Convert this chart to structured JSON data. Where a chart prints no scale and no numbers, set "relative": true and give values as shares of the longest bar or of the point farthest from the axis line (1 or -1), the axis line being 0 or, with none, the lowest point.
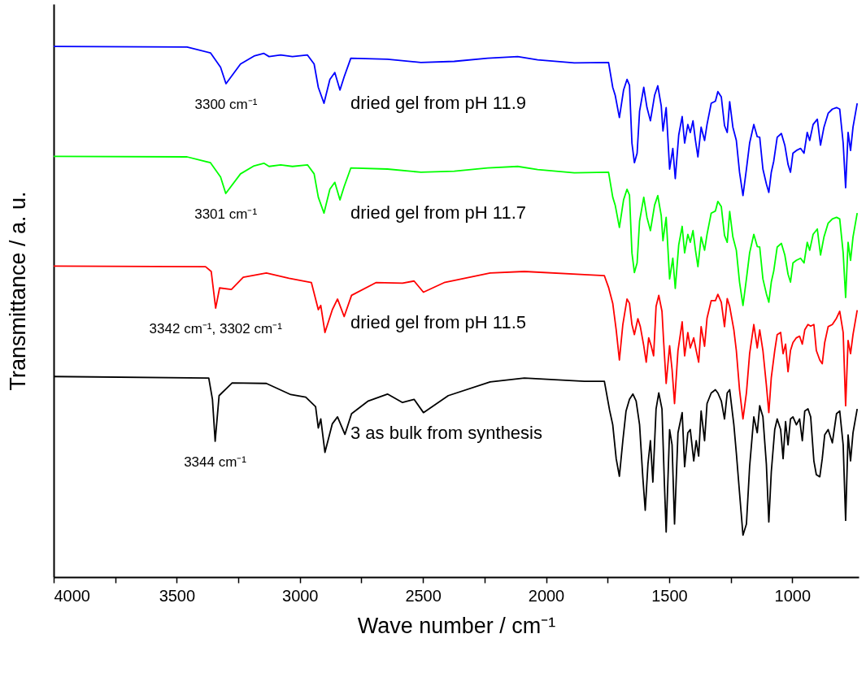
{
  "chart_data": {
    "type": "line",
    "relative": true,
    "xlabel": "Wave number / cm⁻¹",
    "ylabel": "Transmittance / a. u.",
    "xlim": [
      4000,
      730
    ],
    "xticks": [
      4000,
      {
        "value": 3750,
        "label": null
      },
      3500,
      {
        "value": 3250,
        "label": null
      },
      3000,
      {
        "value": 2750,
        "label": null
      },
      2500,
      {
        "value": 2250,
        "label": null
      },
      2000,
      {
        "value": 1750,
        "label": null
      },
      1500,
      {
        "value": 1250,
        "label": null
      },
      1000
    ],
    "grid": false,
    "legend": false,
    "annotations": [
      {
        "text": "3300 cm⁻¹",
        "x": 3300,
        "y": 0.93
      },
      {
        "text": "3301 cm⁻¹",
        "x": 3301,
        "y": 0.723
      },
      {
        "text": "3342 cm⁻¹, 3302 cm⁻¹",
        "x": 3342,
        "y": 0.507
      },
      {
        "text": "3344 cm⁻¹",
        "x": 3344,
        "y": 0.256
      }
    ],
    "series": [
      {
        "name": "dried gel from pH 11.9",
        "color": "#0000ff",
        "x": [
          4000,
          3458,
          3363,
          3322,
          3300,
          3241,
          3186,
          3146,
          3125,
          3078,
          3030,
          2969,
          2942,
          2925,
          2902,
          2878,
          2858,
          2837,
          2820,
          2793,
          2644,
          2508,
          2373,
          2237,
          2115,
          2034,
          1885,
          1746,
          1729,
          1719,
          1702,
          1685,
          1671,
          1661,
          1651,
          1641,
          1630,
          1620,
          1603,
          1590,
          1576,
          1559,
          1546,
          1532,
          1525,
          1512,
          1498,
          1485,
          1475,
          1461,
          1447,
          1437,
          1424,
          1414,
          1403,
          1393,
          1383,
          1370,
          1356,
          1346,
          1329,
          1312,
          1302,
          1288,
          1275,
          1264,
          1254,
          1241,
          1227,
          1214,
          1200,
          1186,
          1173,
          1156,
          1142,
          1132,
          1119,
          1105,
          1095,
          1085,
          1075,
          1061,
          1044,
          1030,
          1017,
          1007,
          997,
          983,
          966,
          952,
          939,
          929,
          915,
          898,
          885,
          871,
          854,
          837,
          820,
          807,
          793,
          783,
          773,
          763,
          753,
          736
        ],
        "values": [
          1.0,
          0.999,
          0.988,
          0.961,
          0.93,
          0.967,
          0.982,
          0.987,
          0.981,
          0.984,
          0.981,
          0.984,
          0.967,
          0.923,
          0.893,
          0.938,
          0.951,
          0.918,
          0.943,
          0.978,
          0.976,
          0.97,
          0.972,
          0.978,
          0.981,
          0.975,
          0.969,
          0.97,
          0.923,
          0.908,
          0.866,
          0.918,
          0.938,
          0.927,
          0.818,
          0.781,
          0.799,
          0.878,
          0.923,
          0.885,
          0.86,
          0.908,
          0.926,
          0.888,
          0.841,
          0.885,
          0.769,
          0.808,
          0.751,
          0.833,
          0.868,
          0.818,
          0.853,
          0.838,
          0.86,
          0.823,
          0.792,
          0.848,
          0.823,
          0.853,
          0.893,
          0.897,
          0.915,
          0.905,
          0.851,
          0.838,
          0.896,
          0.848,
          0.823,
          0.763,
          0.719,
          0.769,
          0.818,
          0.853,
          0.83,
          0.829,
          0.769,
          0.741,
          0.725,
          0.763,
          0.784,
          0.829,
          0.836,
          0.814,
          0.778,
          0.763,
          0.799,
          0.804,
          0.808,
          0.799,
          0.838,
          0.823,
          0.853,
          0.863,
          0.814,
          0.848,
          0.874,
          0.882,
          0.885,
          0.882,
          0.818,
          0.734,
          0.838,
          0.804,
          0.848,
          0.893
        ]
      },
      {
        "name": "dried gel from pH 11.7",
        "color": "#00ff00",
        "x": [
          4000,
          3458,
          3363,
          3322,
          3301,
          3241,
          3186,
          3146,
          3125,
          3078,
          3030,
          2969,
          2942,
          2925,
          2902,
          2878,
          2858,
          2837,
          2820,
          2793,
          2644,
          2508,
          2373,
          2237,
          2115,
          2034,
          1885,
          1746,
          1729,
          1719,
          1702,
          1685,
          1671,
          1661,
          1651,
          1641,
          1630,
          1620,
          1603,
          1590,
          1576,
          1559,
          1546,
          1532,
          1525,
          1512,
          1498,
          1485,
          1475,
          1461,
          1447,
          1437,
          1424,
          1414,
          1403,
          1393,
          1383,
          1370,
          1356,
          1346,
          1329,
          1312,
          1302,
          1288,
          1275,
          1264,
          1254,
          1241,
          1227,
          1214,
          1200,
          1186,
          1173,
          1156,
          1142,
          1132,
          1119,
          1105,
          1095,
          1085,
          1075,
          1061,
          1044,
          1030,
          1017,
          1007,
          997,
          983,
          966,
          952,
          939,
          929,
          915,
          898,
          885,
          871,
          854,
          837,
          820,
          807,
          793,
          783,
          773,
          763,
          753,
          736
        ],
        "values": [
          0.793,
          0.792,
          0.781,
          0.754,
          0.723,
          0.76,
          0.775,
          0.78,
          0.774,
          0.777,
          0.774,
          0.777,
          0.76,
          0.716,
          0.686,
          0.731,
          0.744,
          0.711,
          0.736,
          0.771,
          0.769,
          0.763,
          0.765,
          0.771,
          0.774,
          0.768,
          0.762,
          0.763,
          0.716,
          0.701,
          0.659,
          0.711,
          0.731,
          0.72,
          0.611,
          0.574,
          0.592,
          0.671,
          0.716,
          0.678,
          0.653,
          0.701,
          0.719,
          0.681,
          0.634,
          0.678,
          0.562,
          0.601,
          0.544,
          0.626,
          0.661,
          0.611,
          0.646,
          0.631,
          0.653,
          0.616,
          0.585,
          0.641,
          0.616,
          0.646,
          0.686,
          0.69,
          0.708,
          0.698,
          0.644,
          0.631,
          0.689,
          0.641,
          0.616,
          0.556,
          0.512,
          0.562,
          0.611,
          0.646,
          0.623,
          0.622,
          0.562,
          0.534,
          0.518,
          0.556,
          0.577,
          0.622,
          0.629,
          0.607,
          0.571,
          0.556,
          0.592,
          0.597,
          0.601,
          0.592,
          0.631,
          0.616,
          0.646,
          0.656,
          0.607,
          0.641,
          0.667,
          0.675,
          0.678,
          0.675,
          0.611,
          0.527,
          0.631,
          0.597,
          0.641,
          0.686
        ]
      },
      {
        "name": "dried gel from pH 11.5",
        "color": "#ff0000",
        "x": [
          4000,
          3383,
          3360,
          3342,
          3326,
          3278,
          3230,
          3136,
          3044,
          2953,
          2925,
          2915,
          2898,
          2868,
          2847,
          2820,
          2790,
          2691,
          2583,
          2536,
          2498,
          2414,
          2227,
          2088,
          1844,
          1763,
          1746,
          1729,
          1715,
          1702,
          1688,
          1671,
          1661,
          1651,
          1641,
          1627,
          1617,
          1603,
          1593,
          1583,
          1573,
          1563,
          1553,
          1542,
          1529,
          1522,
          1512,
          1498,
          1488,
          1478,
          1464,
          1447,
          1437,
          1424,
          1414,
          1400,
          1390,
          1380,
          1370,
          1356,
          1346,
          1329,
          1312,
          1302,
          1288,
          1275,
          1264,
          1254,
          1237,
          1227,
          1214,
          1200,
          1186,
          1173,
          1156,
          1142,
          1132,
          1119,
          1105,
          1095,
          1085,
          1071,
          1061,
          1047,
          1037,
          1027,
          1017,
          1007,
          997,
          983,
          970,
          959,
          949,
          936,
          925,
          912,
          902,
          888,
          878,
          868,
          854,
          837,
          820,
          807,
          793,
          783,
          773,
          763,
          753,
          736
        ],
        "values": [
          0.586,
          0.585,
          0.576,
          0.507,
          0.545,
          0.542,
          0.565,
          0.573,
          0.563,
          0.555,
          0.504,
          0.512,
          0.461,
          0.504,
          0.524,
          0.491,
          0.531,
          0.555,
          0.554,
          0.558,
          0.537,
          0.555,
          0.573,
          0.576,
          0.57,
          0.568,
          0.546,
          0.516,
          0.466,
          0.409,
          0.476,
          0.524,
          0.516,
          0.476,
          0.457,
          0.487,
          0.472,
          0.436,
          0.405,
          0.451,
          0.436,
          0.417,
          0.51,
          0.531,
          0.501,
          0.442,
          0.365,
          0.436,
          0.391,
          0.327,
          0.427,
          0.481,
          0.417,
          0.461,
          0.432,
          0.451,
          0.427,
          0.405,
          0.472,
          0.435,
          0.488,
          0.521,
          0.521,
          0.533,
          0.518,
          0.472,
          0.525,
          0.51,
          0.466,
          0.427,
          0.353,
          0.298,
          0.347,
          0.421,
          0.476,
          0.432,
          0.466,
          0.427,
          0.362,
          0.31,
          0.376,
          0.427,
          0.457,
          0.461,
          0.421,
          0.439,
          0.387,
          0.427,
          0.442,
          0.451,
          0.454,
          0.439,
          0.466,
          0.476,
          0.473,
          0.476,
          0.427,
          0.409,
          0.402,
          0.442,
          0.472,
          0.476,
          0.488,
          0.501,
          0.461,
          0.323,
          0.446,
          0.421,
          0.457,
          0.503
        ]
      },
      {
        "name": "3 as bulk from synthesis",
        "color": "#000000",
        "x": [
          4000,
          3370,
          3355,
          3344,
          3328,
          3275,
          3136,
          3037,
          2976,
          2936,
          2925,
          2915,
          2898,
          2868,
          2847,
          2817,
          2790,
          2722,
          2644,
          2583,
          2536,
          2498,
          2397,
          2227,
          2088,
          1844,
          1763,
          1742,
          1729,
          1715,
          1702,
          1688,
          1675,
          1661,
          1647,
          1634,
          1620,
          1607,
          1597,
          1586,
          1576,
          1566,
          1553,
          1542,
          1529,
          1519,
          1512,
          1498,
          1488,
          1478,
          1464,
          1447,
          1437,
          1424,
          1414,
          1400,
          1390,
          1380,
          1370,
          1356,
          1346,
          1329,
          1312,
          1302,
          1288,
          1275,
          1264,
          1254,
          1237,
          1227,
          1214,
          1200,
          1186,
          1173,
          1156,
          1142,
          1132,
          1119,
          1105,
          1095,
          1085,
          1071,
          1061,
          1047,
          1037,
          1027,
          1017,
          1007,
          997,
          983,
          970,
          959,
          949,
          936,
          925,
          912,
          902,
          888,
          878,
          868,
          854,
          837,
          820,
          807,
          793,
          783,
          773,
          763,
          753,
          736
        ],
        "values": [
          0.378,
          0.375,
          0.335,
          0.256,
          0.342,
          0.366,
          0.365,
          0.344,
          0.339,
          0.321,
          0.281,
          0.298,
          0.235,
          0.289,
          0.302,
          0.269,
          0.308,
          0.332,
          0.345,
          0.329,
          0.335,
          0.31,
          0.342,
          0.368,
          0.375,
          0.369,
          0.369,
          0.315,
          0.287,
          0.223,
          0.19,
          0.257,
          0.313,
          0.335,
          0.345,
          0.332,
          0.287,
          0.189,
          0.126,
          0.213,
          0.257,
          0.179,
          0.317,
          0.347,
          0.317,
          0.174,
          0.085,
          0.278,
          0.249,
          0.1,
          0.272,
          0.31,
          0.208,
          0.272,
          0.278,
          0.219,
          0.257,
          0.228,
          0.313,
          0.257,
          0.327,
          0.347,
          0.353,
          0.347,
          0.332,
          0.298,
          0.347,
          0.353,
          0.287,
          0.234,
          0.159,
          0.079,
          0.1,
          0.208,
          0.302,
          0.272,
          0.323,
          0.302,
          0.213,
          0.104,
          0.198,
          0.278,
          0.298,
          0.278,
          0.223,
          0.293,
          0.249,
          0.298,
          0.302,
          0.287,
          0.298,
          0.257,
          0.313,
          0.317,
          0.302,
          0.219,
          0.193,
          0.189,
          0.223,
          0.268,
          0.278,
          0.253,
          0.308,
          0.313,
          0.249,
          0.107,
          0.268,
          0.219,
          0.272,
          0.317
        ]
      }
    ]
  }
}
